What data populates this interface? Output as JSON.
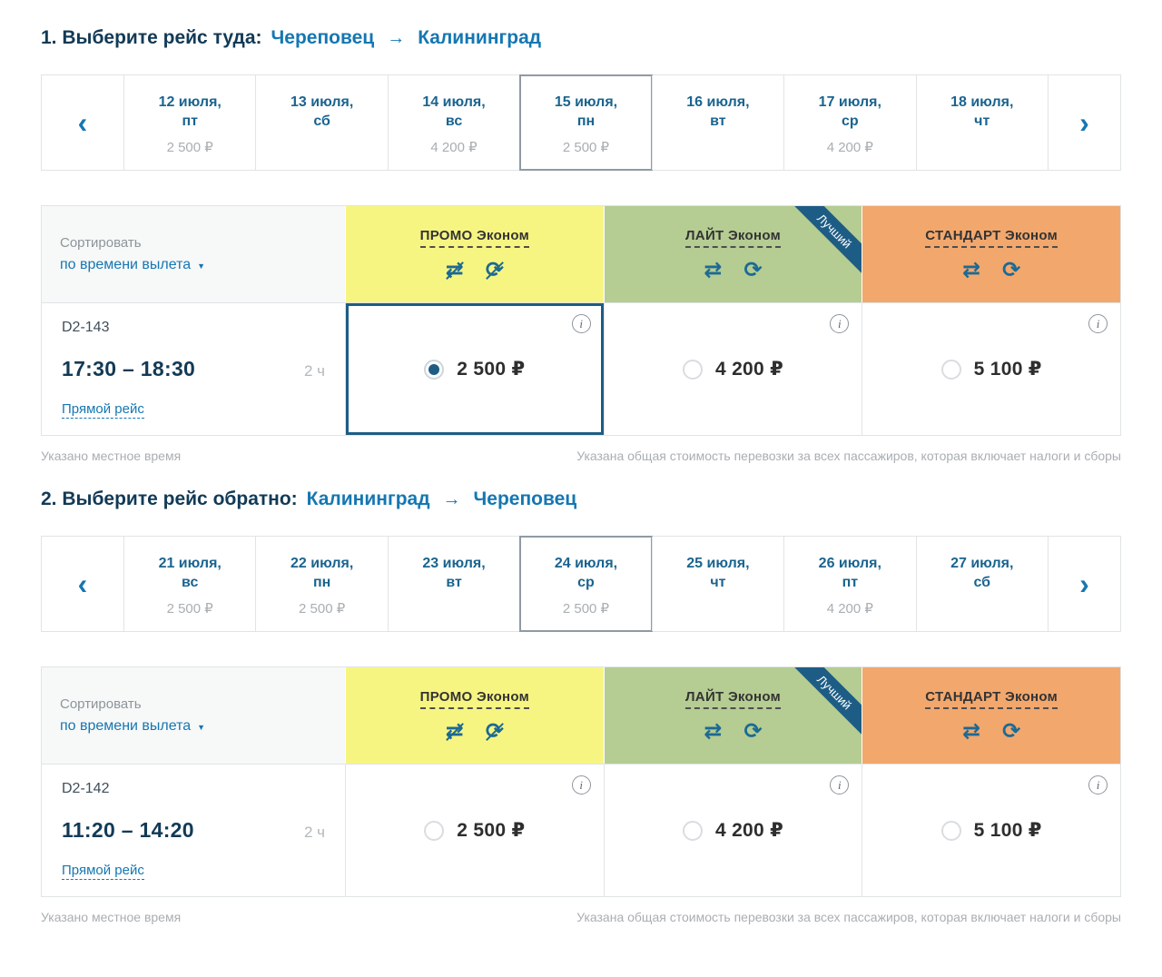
{
  "icons": {
    "chevron_left": "‹",
    "chevron_right": "›",
    "arrow_right": "→",
    "dropdown_arrow": "▼",
    "no_change": "⇄",
    "no_refund": "⟳",
    "change": "⇄",
    "refund": "⟳",
    "info": "i"
  },
  "colors": {
    "promo_bg": "#f7f582",
    "light_bg": "#b5cc92",
    "standard_bg": "#f2a76d",
    "accent_blue": "#1577b2",
    "dark_navy": "#123a56",
    "selected_border": "#1d5d85"
  },
  "outbound": {
    "step_label": "1. Выберите рейс туда:",
    "from_city": "Череповец",
    "to_city": "Калининград",
    "dates": [
      {
        "date": "12 июля,",
        "day": "пт",
        "price": "2 500 ₽",
        "selected": false
      },
      {
        "date": "13 июля,",
        "day": "сб",
        "price": "",
        "selected": false
      },
      {
        "date": "14 июля,",
        "day": "вс",
        "price": "4 200 ₽",
        "selected": false
      },
      {
        "date": "15 июля,",
        "day": "пн",
        "price": "2 500 ₽",
        "selected": true
      },
      {
        "date": "16 июля,",
        "day": "вт",
        "price": "",
        "selected": false
      },
      {
        "date": "17 июля,",
        "day": "ср",
        "price": "4 200 ₽",
        "selected": false
      },
      {
        "date": "18 июля,",
        "day": "чт",
        "price": "",
        "selected": false
      }
    ],
    "sort": {
      "label": "Сортировать",
      "value": "по времени вылета"
    },
    "fare_columns": [
      {
        "name": "ПРОМО Эконом",
        "badge": ""
      },
      {
        "name": "ЛАЙТ Эконом",
        "badge": "Лучший"
      },
      {
        "name": "СТАНДАРТ Эконом",
        "badge": ""
      }
    ],
    "flight": {
      "number": "D2-143",
      "time": "17:30 – 18:30",
      "duration": "2 ч",
      "route_type": "Прямой рейс",
      "prices": [
        {
          "value": "2 500 ₽",
          "selected": true
        },
        {
          "value": "4 200 ₽",
          "selected": false
        },
        {
          "value": "5 100 ₽",
          "selected": false
        }
      ]
    },
    "note_left": "Указано местное время",
    "note_right": "Указана общая стоимость перевозки за всех пассажиров, которая включает налоги и сборы"
  },
  "inbound": {
    "step_label": "2. Выберите рейс обратно:",
    "from_city": "Калининград",
    "to_city": "Череповец",
    "dates": [
      {
        "date": "21 июля,",
        "day": "вс",
        "price": "2 500 ₽",
        "selected": false
      },
      {
        "date": "22 июля,",
        "day": "пн",
        "price": "2 500 ₽",
        "selected": false
      },
      {
        "date": "23 июля,",
        "day": "вт",
        "price": "",
        "selected": false
      },
      {
        "date": "24 июля,",
        "day": "ср",
        "price": "2 500 ₽",
        "selected": true
      },
      {
        "date": "25 июля,",
        "day": "чт",
        "price": "",
        "selected": false
      },
      {
        "date": "26 июля,",
        "day": "пт",
        "price": "4 200 ₽",
        "selected": false
      },
      {
        "date": "27 июля,",
        "day": "сб",
        "price": "",
        "selected": false
      }
    ],
    "sort": {
      "label": "Сортировать",
      "value": "по времени вылета"
    },
    "fare_columns": [
      {
        "name": "ПРОМО Эконом",
        "badge": ""
      },
      {
        "name": "ЛАЙТ Эконом",
        "badge": "Лучший"
      },
      {
        "name": "СТАНДАРТ Эконом",
        "badge": ""
      }
    ],
    "flight": {
      "number": "D2-142",
      "time": "11:20 – 14:20",
      "duration": "2 ч",
      "route_type": "Прямой рейс",
      "prices": [
        {
          "value": "2 500 ₽",
          "selected": false
        },
        {
          "value": "4 200 ₽",
          "selected": false
        },
        {
          "value": "5 100 ₽",
          "selected": false
        }
      ]
    },
    "note_left": "Указано местное время",
    "note_right": "Указана общая стоимость перевозки за всех пассажиров, которая включает налоги и сборы"
  }
}
